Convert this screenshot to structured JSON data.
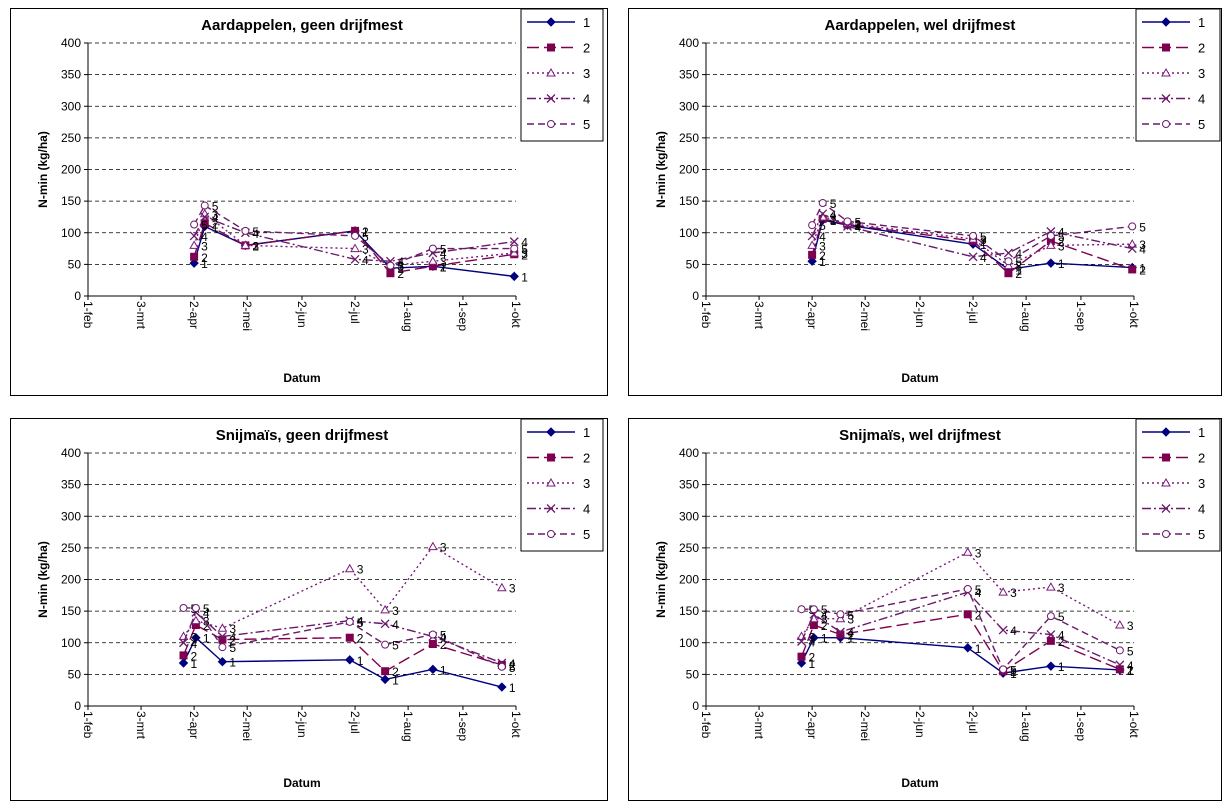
{
  "x_categories": [
    "1-feb",
    "3-mrt",
    "2-apr",
    "2-mei",
    "2-jun",
    "2-jul",
    "1-aug",
    "1-sep",
    "1-okt"
  ],
  "y_ticks": [
    0,
    50,
    100,
    150,
    200,
    250,
    300,
    350,
    400
  ],
  "legend_labels": [
    "1",
    "2",
    "3",
    "4",
    "5"
  ],
  "series_styles": [
    {
      "color": "#000080",
      "dash": "",
      "marker": "diamond"
    },
    {
      "color": "#800050",
      "dash": "12,5",
      "marker": "square"
    },
    {
      "color": "#7a1a7a",
      "dash": "2,3",
      "marker": "triangle"
    },
    {
      "color": "#6a1a6a",
      "dash": "9,3,2,3",
      "marker": "x"
    },
    {
      "color": "#6a1a6a",
      "dash": "7,4",
      "marker": "circle"
    }
  ],
  "chart_data": [
    {
      "type": "line",
      "title": "Aardappelen, geen drijfmest",
      "xlabel": "Datum",
      "ylabel": "N-min (kg/ha)",
      "ylim": [
        0,
        400
      ],
      "x_axis": "date (day-of-year offset from 1-feb)",
      "series": [
        {
          "name": "1",
          "points": [
            [
              "2-apr",
              52
            ],
            [
              "8-apr",
              110
            ],
            [
              "1-mei",
              80
            ],
            [
              "2-jul",
              103
            ],
            [
              "22-jul",
              44
            ],
            [
              "15-aug",
              47
            ],
            [
              "30-sep",
              31
            ]
          ]
        },
        {
          "name": "2",
          "points": [
            [
              "2-apr",
              62
            ],
            [
              "8-apr",
              115
            ],
            [
              "1-mei",
              80
            ],
            [
              "2-jul",
              103
            ],
            [
              "22-jul",
              36
            ],
            [
              "15-aug",
              47
            ],
            [
              "30-sep",
              66
            ]
          ]
        },
        {
          "name": "3",
          "points": [
            [
              "2-apr",
              80
            ],
            [
              "8-apr",
              130
            ],
            [
              "1-mei",
              80
            ],
            [
              "2-jul",
              75
            ],
            [
              "22-jul",
              48
            ],
            [
              "15-aug",
              55
            ],
            [
              "30-sep",
              68
            ]
          ]
        },
        {
          "name": "4",
          "points": [
            [
              "2-apr",
              95
            ],
            [
              "8-apr",
              125
            ],
            [
              "1-mei",
              100
            ],
            [
              "2-jul",
              58
            ],
            [
              "22-jul",
              55
            ],
            [
              "15-aug",
              68
            ],
            [
              "30-sep",
              86
            ]
          ]
        },
        {
          "name": "5",
          "points": [
            [
              "2-apr",
              113
            ],
            [
              "8-apr",
              143
            ],
            [
              "1-mei",
              103
            ],
            [
              "2-jul",
              95
            ],
            [
              "22-jul",
              48
            ],
            [
              "15-aug",
              75
            ],
            [
              "30-sep",
              75
            ]
          ]
        }
      ]
    },
    {
      "type": "line",
      "title": "Aardappelen, wel drijfmest",
      "xlabel": "Datum",
      "ylabel": "N-min (kg/ha)",
      "ylim": [
        0,
        400
      ],
      "series": [
        {
          "name": "1",
          "points": [
            [
              "2-apr",
              55
            ],
            [
              "8-apr",
              120
            ],
            [
              "22-apr",
              112
            ],
            [
              "2-jul",
              82
            ],
            [
              "22-jul",
              42
            ],
            [
              "15-aug",
              52
            ],
            [
              "30-sep",
              45
            ]
          ]
        },
        {
          "name": "2",
          "points": [
            [
              "2-apr",
              65
            ],
            [
              "8-apr",
              122
            ],
            [
              "22-apr",
              113
            ],
            [
              "2-jul",
              87
            ],
            [
              "22-jul",
              36
            ],
            [
              "15-aug",
              87
            ],
            [
              "30-sep",
              42
            ]
          ]
        },
        {
          "name": "3",
          "points": [
            [
              "2-apr",
              80
            ],
            [
              "8-apr",
              125
            ],
            [
              "22-apr",
              115
            ],
            [
              "2-jul",
              90
            ],
            [
              "22-jul",
              48
            ],
            [
              "15-aug",
              80
            ],
            [
              "30-sep",
              82
            ]
          ]
        },
        {
          "name": "4",
          "points": [
            [
              "2-apr",
              95
            ],
            [
              "8-apr",
              130
            ],
            [
              "22-apr",
              110
            ],
            [
              "2-jul",
              62
            ],
            [
              "22-jul",
              68
            ],
            [
              "15-aug",
              102
            ],
            [
              "30-sep",
              75
            ]
          ]
        },
        {
          "name": "5",
          "points": [
            [
              "2-apr",
              112
            ],
            [
              "8-apr",
              147
            ],
            [
              "22-apr",
              118
            ],
            [
              "2-jul",
              95
            ],
            [
              "22-jul",
              55
            ],
            [
              "15-aug",
              95
            ],
            [
              "30-sep",
              110
            ]
          ]
        }
      ]
    },
    {
      "type": "line",
      "title": "Snijmaïs, geen drijfmest",
      "xlabel": "Datum",
      "ylabel": "N-min (kg/ha)",
      "ylim": [
        0,
        400
      ],
      "series": [
        {
          "name": "1",
          "points": [
            [
              "27-mrt",
              68
            ],
            [
              "3-apr",
              108
            ],
            [
              "18-apr",
              70
            ],
            [
              "29-jun",
              73
            ],
            [
              "19-jul",
              42
            ],
            [
              "15-aug",
              58
            ],
            [
              "23-sep",
              30
            ]
          ]
        },
        {
          "name": "2",
          "points": [
            [
              "27-mrt",
              80
            ],
            [
              "3-apr",
              128
            ],
            [
              "18-apr",
              105
            ],
            [
              "29-jun",
              108
            ],
            [
              "19-jul",
              55
            ],
            [
              "15-aug",
              98
            ],
            [
              "23-sep",
              65
            ]
          ]
        },
        {
          "name": "3",
          "points": [
            [
              "27-mrt",
              110
            ],
            [
              "3-apr",
              135
            ],
            [
              "18-apr",
              123
            ],
            [
              "29-jun",
              217
            ],
            [
              "19-jul",
              152
            ],
            [
              "15-aug",
              252
            ],
            [
              "23-sep",
              187
            ]
          ]
        },
        {
          "name": "4",
          "points": [
            [
              "27-mrt",
              100
            ],
            [
              "3-apr",
              148
            ],
            [
              "18-apr",
              110
            ],
            [
              "29-jun",
              135
            ],
            [
              "19-jul",
              130
            ],
            [
              "15-aug",
              110
            ],
            [
              "23-sep",
              68
            ]
          ]
        },
        {
          "name": "5",
          "points": [
            [
              "27-mrt",
              155
            ],
            [
              "3-apr",
              155
            ],
            [
              "18-apr",
              93
            ],
            [
              "29-jun",
              133
            ],
            [
              "19-jul",
              97
            ],
            [
              "15-aug",
              113
            ],
            [
              "23-sep",
              62
            ]
          ]
        }
      ]
    },
    {
      "type": "line",
      "title": "Snijmaïs, wel drijfmest",
      "xlabel": "Datum",
      "ylabel": "N-min (kg/ha)",
      "ylim": [
        0,
        400
      ],
      "series": [
        {
          "name": "1",
          "points": [
            [
              "27-mrt",
              68
            ],
            [
              "3-apr",
              108
            ],
            [
              "18-apr",
              108
            ],
            [
              "29-jun",
              92
            ],
            [
              "19-jul",
              52
            ],
            [
              "15-aug",
              63
            ],
            [
              "23-sep",
              57
            ]
          ]
        },
        {
          "name": "2",
          "points": [
            [
              "27-mrt",
              78
            ],
            [
              "3-apr",
              128
            ],
            [
              "18-apr",
              113
            ],
            [
              "29-jun",
              145
            ],
            [
              "19-jul",
              55
            ],
            [
              "15-aug",
              103
            ],
            [
              "23-sep",
              58
            ]
          ]
        },
        {
          "name": "3",
          "points": [
            [
              "27-mrt",
              110
            ],
            [
              "3-apr",
              138
            ],
            [
              "18-apr",
              138
            ],
            [
              "29-jun",
              243
            ],
            [
              "19-jul",
              180
            ],
            [
              "15-aug",
              188
            ],
            [
              "23-sep",
              128
            ]
          ]
        },
        {
          "name": "4",
          "points": [
            [
              "27-mrt",
              102
            ],
            [
              "3-apr",
              145
            ],
            [
              "18-apr",
              117
            ],
            [
              "29-jun",
              180
            ],
            [
              "19-jul",
              120
            ],
            [
              "15-aug",
              113
            ],
            [
              "23-sep",
              65
            ]
          ]
        },
        {
          "name": "5",
          "points": [
            [
              "27-mrt",
              153
            ],
            [
              "3-apr",
              153
            ],
            [
              "18-apr",
              145
            ],
            [
              "29-jun",
              185
            ],
            [
              "19-jul",
              58
            ],
            [
              "15-aug",
              142
            ],
            [
              "23-sep",
              88
            ]
          ]
        }
      ]
    }
  ]
}
